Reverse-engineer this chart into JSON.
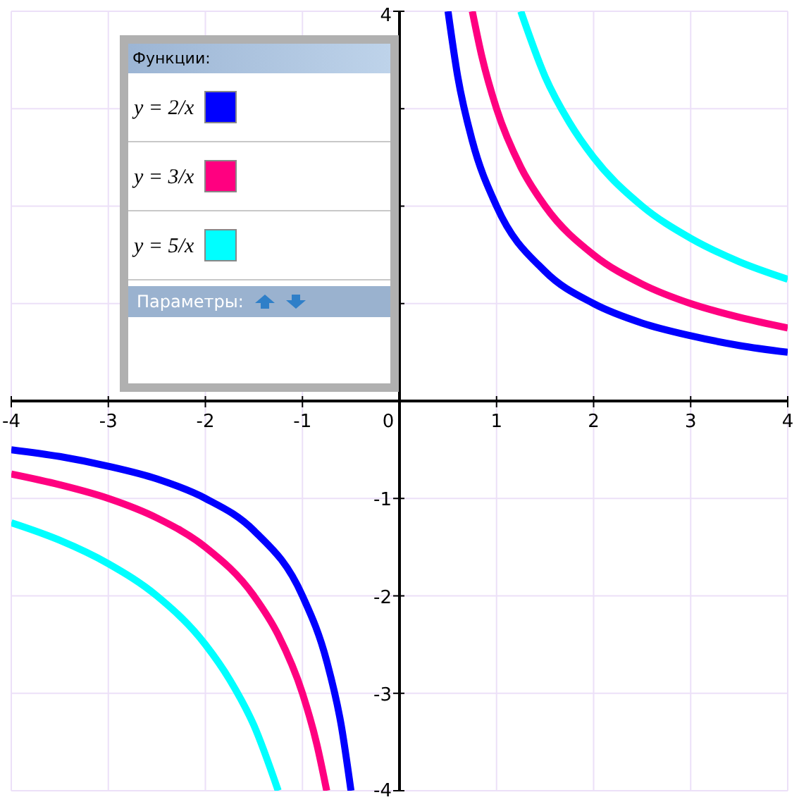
{
  "chart_data": {
    "type": "line",
    "legend_title": "Функции:",
    "annotations": [
      "Параметры:"
    ],
    "legend": "top left",
    "grid": true,
    "line_style": "solid",
    "marker": "none",
    "xlim": [
      -4,
      4
    ],
    "ylim": [
      -4,
      4
    ],
    "xticks": [
      -4,
      -3,
      -2,
      -1,
      0,
      1,
      2,
      3,
      4
    ],
    "yticks": [
      -4,
      -3,
      -2,
      -1,
      {
        "value": 1,
        "label": null
      },
      {
        "value": 2,
        "label": null
      },
      {
        "value": 3,
        "label": null
      },
      4
    ],
    "series": [
      {
        "name": "y = 2/x",
        "color": "#0000ff",
        "x": [
          -4,
          -3.5,
          -3,
          -2.5,
          -2,
          -1.5,
          -1,
          -0.75,
          -0.6,
          -0.5,
          0,
          0.5,
          0.6,
          0.75,
          1,
          1.5,
          2,
          2.5,
          3,
          3.5,
          4
        ],
        "values": [
          -0.5,
          -0.57,
          -0.67,
          -0.8,
          -1,
          -1.33,
          -2,
          -2.67,
          -3.33,
          -4,
          null,
          4,
          3.33,
          2.67,
          2,
          1.33,
          1,
          0.8,
          0.67,
          0.57,
          0.5
        ]
      },
      {
        "name": "y = 3/x",
        "color": "#ff0080",
        "x": [
          -4,
          -3.5,
          -3,
          -2.5,
          -2,
          -1.5,
          -1.25,
          -1,
          -0.85,
          -0.75,
          0,
          0.75,
          0.85,
          1,
          1.25,
          1.5,
          2,
          2.5,
          3,
          3.5,
          4
        ],
        "values": [
          -0.75,
          -0.86,
          -1,
          -1.2,
          -1.5,
          -2,
          -2.4,
          -3,
          -3.53,
          -4,
          null,
          4,
          3.53,
          3,
          2.4,
          2,
          1.5,
          1.2,
          1,
          0.86,
          0.75
        ]
      },
      {
        "name": "y = 5/x",
        "color": "#00ffff",
        "x": [
          -4,
          -3.5,
          -3,
          -2.5,
          -2,
          -1.75,
          -1.5,
          -1.25,
          0,
          1.25,
          1.5,
          1.75,
          2,
          2.5,
          3,
          3.5,
          4
        ],
        "values": [
          -1.25,
          -1.43,
          -1.67,
          -2,
          -2.5,
          -2.86,
          -3.33,
          -4,
          null,
          4,
          3.33,
          2.86,
          2.5,
          2,
          1.67,
          1.43,
          1.25
        ]
      }
    ]
  }
}
